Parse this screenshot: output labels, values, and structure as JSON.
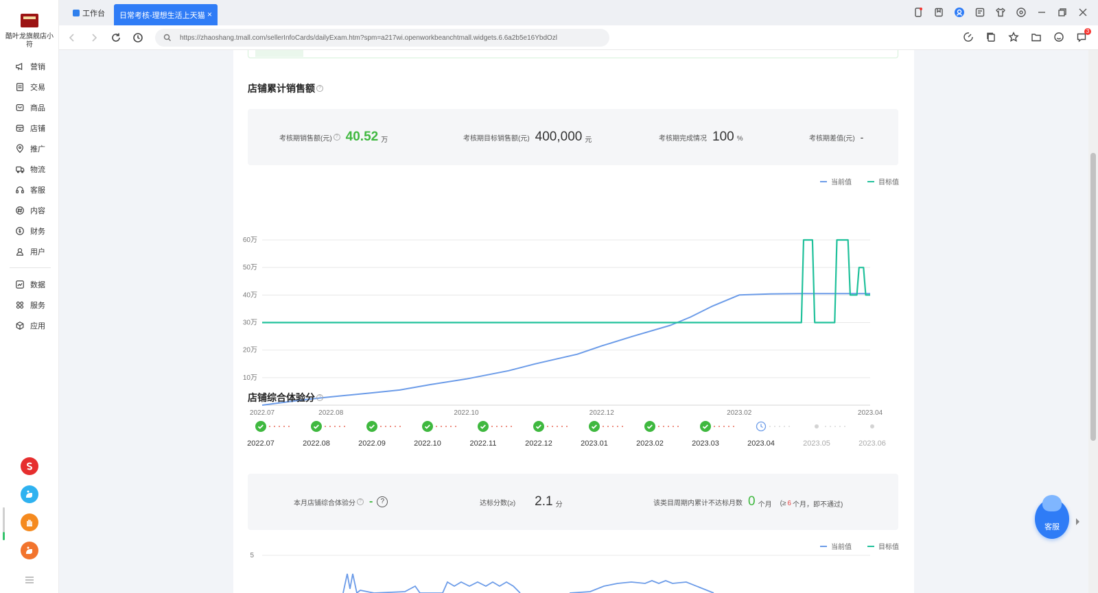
{
  "sidebar": {
    "store_name": "酷叶龙旗舰店小符",
    "items": [
      {
        "label": "营销",
        "icon": "megaphone-icon"
      },
      {
        "label": "交易",
        "icon": "receipt-icon"
      },
      {
        "label": "商品",
        "icon": "bag-icon"
      },
      {
        "label": "店铺",
        "icon": "store-icon"
      },
      {
        "label": "推广",
        "icon": "location-icon"
      },
      {
        "label": "物流",
        "icon": "truck-icon"
      },
      {
        "label": "客服",
        "icon": "headset-icon"
      },
      {
        "label": "内容",
        "icon": "hash-icon"
      },
      {
        "label": "财务",
        "icon": "coin-icon"
      },
      {
        "label": "用户",
        "icon": "user-icon"
      }
    ],
    "items2": [
      {
        "label": "数据",
        "icon": "trend-icon"
      },
      {
        "label": "服务",
        "icon": "grid-icon"
      },
      {
        "label": "应用",
        "icon": "cube-icon"
      }
    ]
  },
  "tabs": {
    "home": "工作台",
    "active": "日常考核-理想生活上天猫",
    "close": "×"
  },
  "address": {
    "url": "https://zhaoshang.tmall.com/sellerInfoCards/dailyExam.htm?spm=a217wi.openworkbeanchtmall.widgets.6.6a2b5e16YbdOzl",
    "badge": "3"
  },
  "sales": {
    "title": "店铺累计销售额",
    "help": "?",
    "stat1_label": "考核期销售额(元)",
    "stat1_value": "40.52",
    "stat1_unit": "万",
    "stat2_label": "考核期目标销售额(元)",
    "stat2_value": "400,000",
    "stat2_unit": "元",
    "stat3_label": "考核期完成情况",
    "stat3_value": "100",
    "stat3_unit": "%",
    "stat4_label": "考核期差值(元)",
    "stat4_value": "-",
    "legend_current": "当前值",
    "legend_target": "目标值"
  },
  "experience": {
    "title": "店铺综合体验分",
    "help": "?",
    "months": [
      "2022.07",
      "2022.08",
      "2022.09",
      "2022.10",
      "2022.11",
      "2022.12",
      "2023.01",
      "2023.02",
      "2023.03",
      "2023.04",
      "2023.05",
      "2023.06"
    ],
    "statuses": [
      "done",
      "done",
      "done",
      "done",
      "done",
      "done",
      "done",
      "done",
      "done",
      "pending",
      "future",
      "future"
    ],
    "stat1_label": "本月店铺综合体验分",
    "stat1_value": "-",
    "stat1_help": "?",
    "stat2_label": "达标分数(≥)",
    "stat2_value": "2.1",
    "stat2_unit": "分",
    "stat3_label": "该类目周期内累计不达标月数",
    "stat3_value": "0",
    "stat3_unit": "个月",
    "stat3_note_pre": "(≥",
    "stat3_note_num": "6",
    "stat3_note_post": "个月，即不通过)",
    "legend_current": "当前值",
    "legend_target": "目标值"
  },
  "service": {
    "label": "客服"
  },
  "colors": {
    "primary": "#2f7cf6",
    "current_line": "#6b9be8",
    "target_line": "#1fc09a",
    "success": "#3fb83f",
    "danger": "#e64545"
  },
  "chart_data": [
    {
      "type": "line",
      "title": "",
      "x_ticks": [
        "2022.07",
        "2022.08",
        "2022.10",
        "2022.12",
        "2023.02",
        "2023.04"
      ],
      "y_ticks": [
        "10万",
        "20万",
        "30万",
        "40万",
        "50万",
        "60万"
      ],
      "ylim": [
        0,
        60
      ],
      "grid": true,
      "legend": "top-right",
      "series": [
        {
          "name": "当前值",
          "x": [
            "2022-07-01",
            "2022-07-20",
            "2022-08-01",
            "2022-08-20",
            "2022-09-01",
            "2022-09-15",
            "2022-10-01",
            "2022-10-20",
            "2022-11-01",
            "2022-11-20",
            "2022-12-01",
            "2022-12-15",
            "2023-01-01",
            "2023-01-10",
            "2023-01-20",
            "2023-02-01",
            "2023-02-15",
            "2023-03-01",
            "2023-04-01"
          ],
          "values": [
            0,
            2,
            3,
            4.5,
            5.5,
            7.5,
            9.5,
            12.5,
            15,
            18.5,
            21.5,
            25,
            29,
            32,
            36,
            40,
            40.4,
            40.5,
            40.5
          ]
        },
        {
          "name": "目标值",
          "x": [
            "2022-07-01",
            "2023-03-01",
            "2023-03-02",
            "2023-03-06",
            "2023-03-07",
            "2023-03-16",
            "2023-03-17",
            "2023-03-22",
            "2023-03-23",
            "2023-03-26",
            "2023-03-27",
            "2023-03-29",
            "2023-03-30",
            "2023-04-01"
          ],
          "values": [
            30,
            30,
            60,
            60,
            30,
            30,
            60,
            60,
            40,
            40,
            50,
            50,
            40,
            40
          ]
        }
      ]
    },
    {
      "type": "line",
      "title": "",
      "y_ticks": [
        "5"
      ],
      "legend": "top-right",
      "grid": true,
      "series": [
        {
          "name": "当前值",
          "values": []
        },
        {
          "name": "目标值",
          "values": []
        }
      ]
    }
  ]
}
